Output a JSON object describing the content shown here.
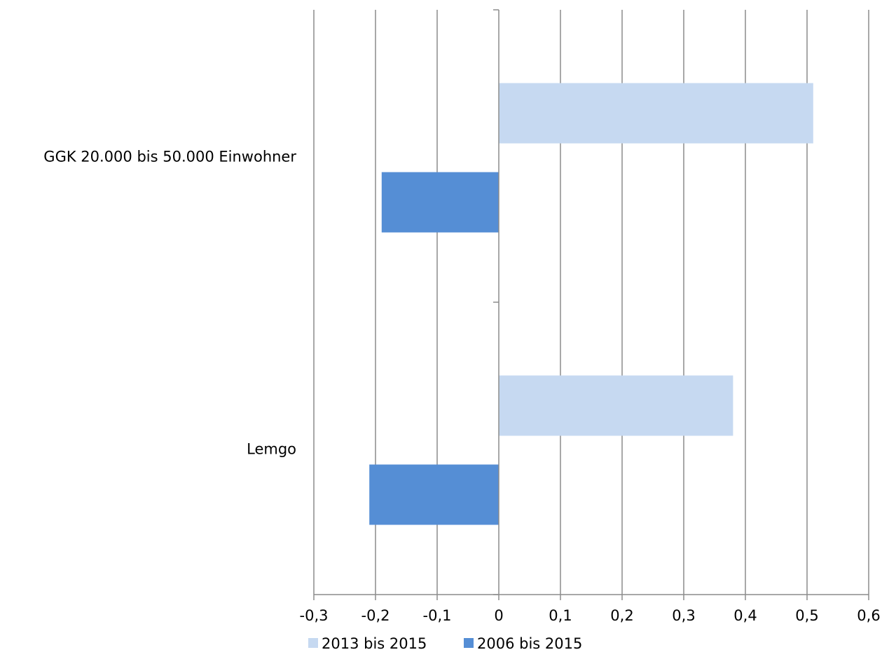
{
  "chart_data": {
    "type": "bar",
    "orientation": "horizontal",
    "categories": [
      "GGK 20.000 bis 50.000 Einwohner",
      "Lemgo"
    ],
    "series": [
      {
        "name": "2013 bis 2015",
        "values": [
          0.51,
          0.38
        ],
        "color": "#c6d9f1"
      },
      {
        "name": "2006 bis 2015",
        "values": [
          -0.19,
          -0.21
        ],
        "color": "#558ed5"
      }
    ],
    "xlim": [
      -0.3,
      0.6
    ],
    "x_ticks": [
      "-0,3",
      "-0,2",
      "-0,1",
      "0",
      "0,1",
      "0,2",
      "0,3",
      "0,4",
      "0,5",
      "0,6"
    ],
    "x_tick_values": [
      -0.3,
      -0.2,
      -0.1,
      0,
      0.1,
      0.2,
      0.3,
      0.4,
      0.5,
      0.6
    ],
    "grid": "vertical",
    "legend_position": "bottom",
    "title": "",
    "xlabel": "",
    "ylabel": ""
  },
  "colors": {
    "grid": "#8c8c8c",
    "axis": "#8c8c8c"
  }
}
